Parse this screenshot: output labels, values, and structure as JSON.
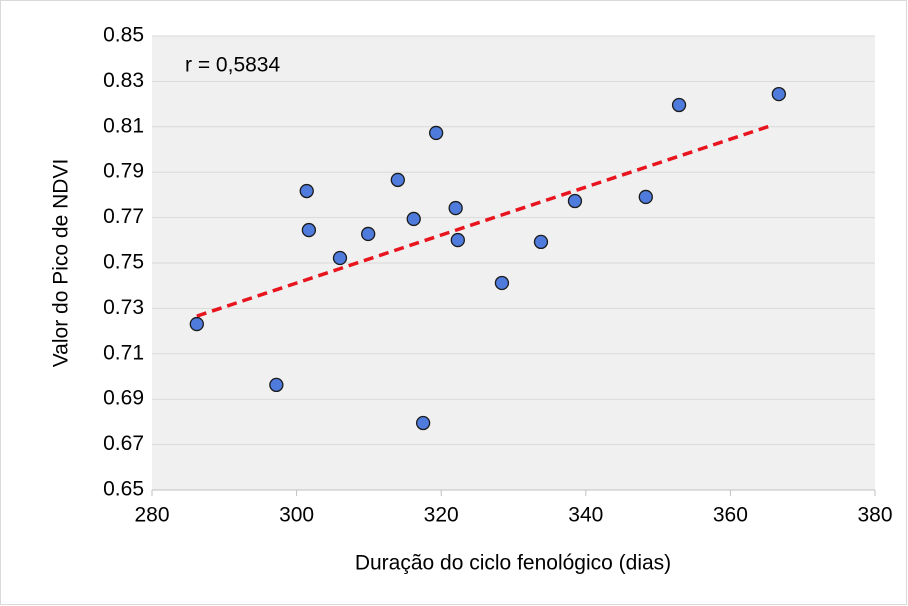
{
  "chart_data": {
    "type": "scatter",
    "x_label": "Duração do ciclo fenológico (dias)",
    "y_label": "Valor do Pico de NDVI",
    "annotation": "r = 0,5834",
    "series": [
      {
        "color": "#4f7bdc",
        "x": [
          286.2,
          297.2,
          301.4,
          301.7,
          306.0,
          309.9,
          314.0,
          316.2,
          317.5,
          319.3,
          322.0,
          322.3,
          328.4,
          333.8,
          338.5,
          348.3,
          352.9,
          366.7
        ],
        "values": [
          0.7231,
          0.6963,
          0.7817,
          0.7645,
          0.7522,
          0.7628,
          0.7866,
          0.7694,
          0.6795,
          0.8073,
          0.7742,
          0.7601,
          0.7412,
          0.7593,
          0.7773,
          0.7791,
          0.8196,
          0.8244
        ]
      }
    ],
    "trendline": {
      "color": "#e8141e",
      "x": [
        286.2,
        365.9
      ],
      "values": [
        0.7266,
        0.8108
      ]
    },
    "xlim": [
      280,
      380
    ],
    "xticks": [
      280,
      300,
      320,
      340,
      360,
      380
    ],
    "ylim": [
      0.65,
      0.85
    ],
    "yticks": [
      0.65,
      0.67,
      0.69,
      0.71,
      0.73,
      0.75,
      0.77,
      0.79,
      0.81,
      0.83,
      0.85
    ],
    "grid": true
  }
}
